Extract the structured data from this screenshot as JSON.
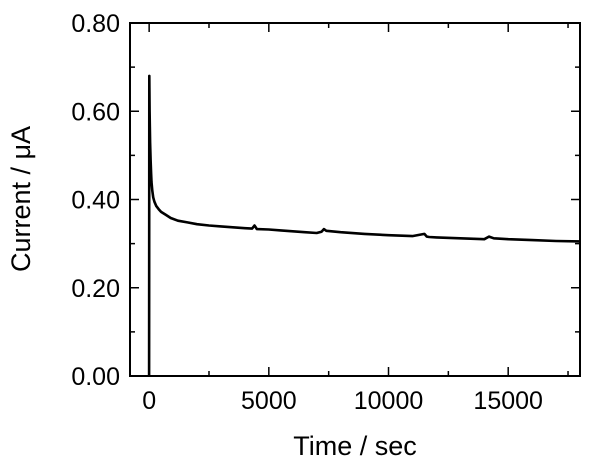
{
  "chart_data": {
    "type": "line",
    "title": "",
    "xlabel": "Time / sec",
    "ylabel": "Current / μA",
    "xlim": [
      -800,
      18000
    ],
    "ylim": [
      0,
      0.8
    ],
    "x_ticks": [
      0,
      5000,
      10000,
      15000
    ],
    "x_tick_labels": [
      "0",
      "5000",
      "10000",
      "15000"
    ],
    "y_ticks": [
      0,
      0.2,
      0.4,
      0.6,
      0.8
    ],
    "y_tick_labels": [
      "0.00",
      "0.20",
      "0.40",
      "0.60",
      "0.80"
    ],
    "grid": false,
    "legend": "none",
    "line_color": "#000000",
    "series": [
      {
        "x": [
          0,
          5,
          20,
          40,
          60,
          80,
          100,
          130,
          170,
          220,
          300,
          400,
          500,
          700,
          900,
          1200,
          1600,
          2000,
          2500,
          3000,
          3500,
          4000,
          4300,
          4400,
          4500,
          5000,
          5500,
          6000,
          6500,
          7000,
          7200,
          7300,
          7400,
          8000,
          9000,
          10000,
          11000,
          11500,
          11600,
          11700,
          12000,
          13000,
          14000,
          14200,
          14400,
          15000,
          16000,
          17000,
          18000
        ],
        "y": [
          0.0,
          0.68,
          0.6,
          0.53,
          0.49,
          0.46,
          0.44,
          0.42,
          0.405,
          0.395,
          0.385,
          0.378,
          0.372,
          0.365,
          0.358,
          0.352,
          0.348,
          0.344,
          0.341,
          0.339,
          0.337,
          0.335,
          0.334,
          0.341,
          0.333,
          0.332,
          0.33,
          0.328,
          0.326,
          0.324,
          0.327,
          0.333,
          0.329,
          0.326,
          0.322,
          0.319,
          0.317,
          0.322,
          0.316,
          0.315,
          0.314,
          0.312,
          0.31,
          0.316,
          0.312,
          0.31,
          0.308,
          0.306,
          0.305
        ]
      }
    ]
  }
}
